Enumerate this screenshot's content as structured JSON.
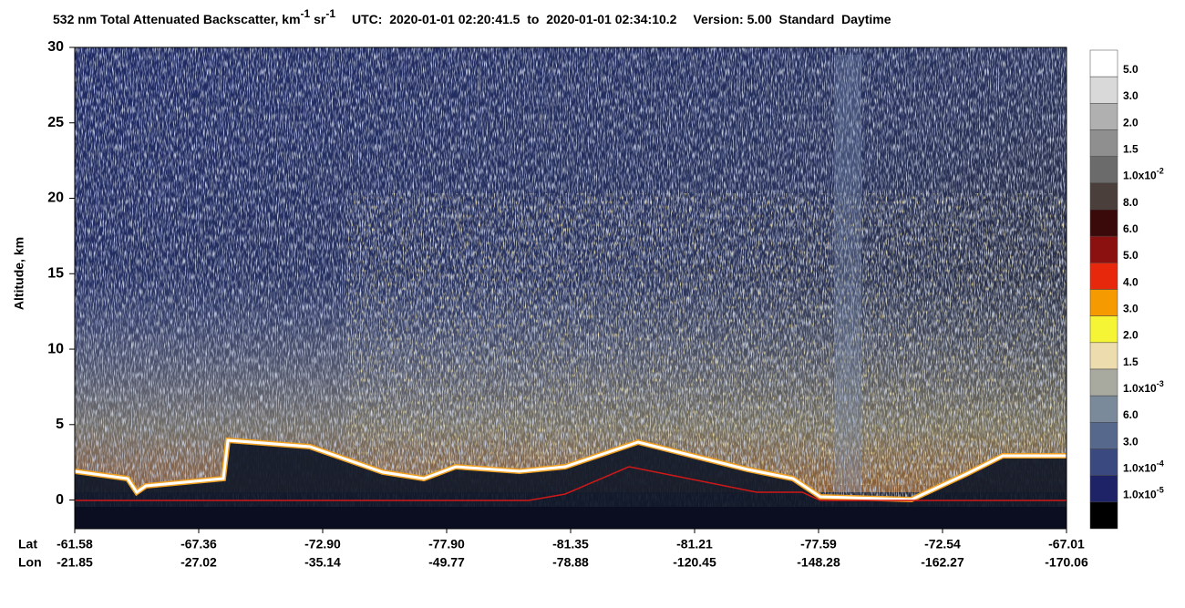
{
  "chart_data": {
    "type": "heatmap",
    "title": {
      "main": "532 nm Total Attenuated Backscatter, km",
      "exp1": "-1",
      "unit2": " sr",
      "exp2": "-1",
      "utc": "UTC:  2020-01-01 02:20:41.5  to  2020-01-01 02:34:10.2",
      "version": "Version: 5.00  Standard  Daytime"
    },
    "ylabel": "Altitude, km",
    "ylim": [
      -1.9,
      30
    ],
    "yticks": [
      0,
      5,
      10,
      15,
      20,
      25,
      30
    ],
    "row_labels": [
      "Lat",
      "Lon"
    ],
    "lat": [
      "-61.58",
      "-67.36",
      "-72.90",
      "-77.90",
      "-81.35",
      "-81.21",
      "-77.59",
      "-72.54",
      "-67.01"
    ],
    "lon": [
      "-21.85",
      "-27.02",
      "-35.14",
      "-49.77",
      "-78.88",
      "-120.45",
      "-148.28",
      "-162.27",
      "-170.06"
    ],
    "colorbar": {
      "colors": [
        "#ffffff",
        "#d9d9d9",
        "#b0b0b0",
        "#8f8f8f",
        "#6b6b6b",
        "#4a3f3a",
        "#3a0a0a",
        "#8b1010",
        "#e8280c",
        "#f59a00",
        "#f5f535",
        "#ecdcae",
        "#a8aaa0",
        "#7b8a9a",
        "#56698c",
        "#3a4a80",
        "#1e2266",
        "#000000"
      ],
      "labels": [
        "5.0",
        "3.0",
        "2.0",
        "1.5",
        {
          "text": "1.0x10",
          "exp": "-2"
        },
        "8.0",
        "6.0",
        "5.0",
        "4.0",
        "3.0",
        "2.0",
        "1.5",
        {
          "text": "1.0x10",
          "exp": "-3"
        },
        "6.0",
        "3.0",
        {
          "text": "1.0x10",
          "exp": "-4"
        },
        {
          "text": "1.0x10",
          "exp": "-5"
        }
      ]
    }
  }
}
